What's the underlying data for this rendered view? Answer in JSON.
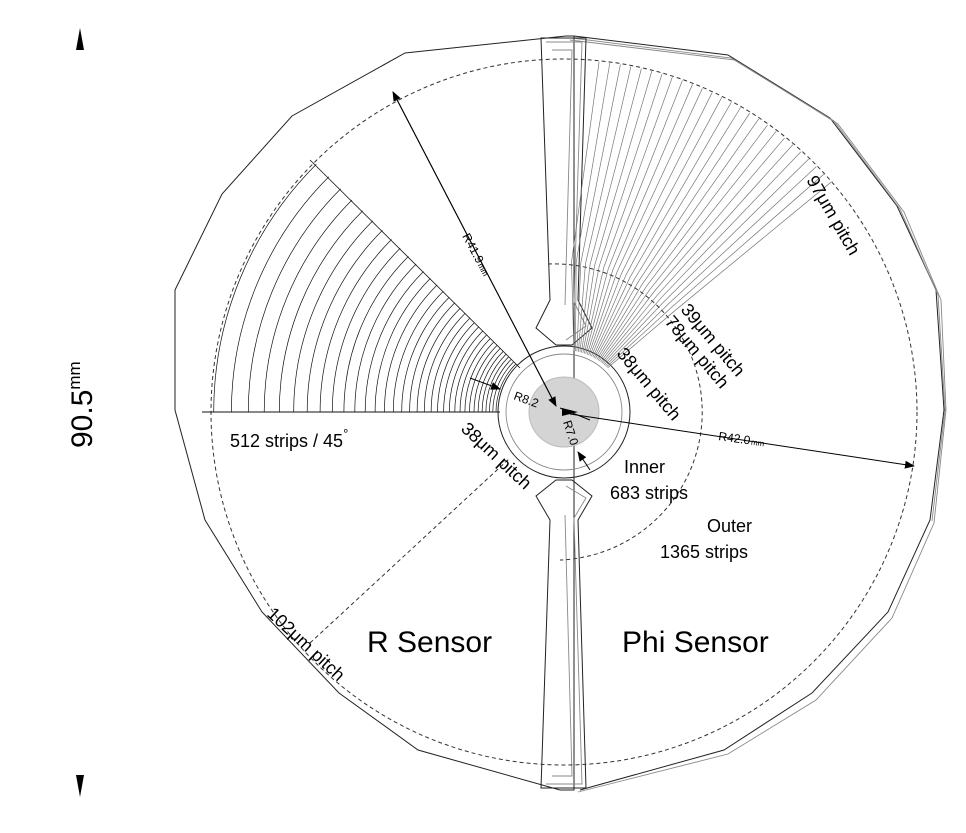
{
  "diagram": {
    "labels": {
      "height_dim": "90.5",
      "height_unit": "mm",
      "r_outer_left": "R41.9",
      "r_outer_left_unit": "mm",
      "r_outer_right": "R42.0",
      "r_outer_right_unit": "mm",
      "r_inner_1": "R8.2",
      "r_inner_2": "R7.0",
      "r_strips": "512 strips / 45",
      "degree": "°",
      "r_pitch_inner": "38μm pitch",
      "r_pitch_outer": "102μm pitch",
      "phi_pitch_outer": "97μm pitch",
      "phi_pitch_39": "39μm pitch",
      "phi_pitch_78": "78μm pitch",
      "phi_pitch_38": "38μm pitch",
      "inner_label": "Inner",
      "inner_strips": "683 strips",
      "outer_label": "Outer",
      "outer_strips": "1365 strips",
      "r_sensor": "R Sensor",
      "phi_sensor": "Phi Sensor"
    }
  }
}
